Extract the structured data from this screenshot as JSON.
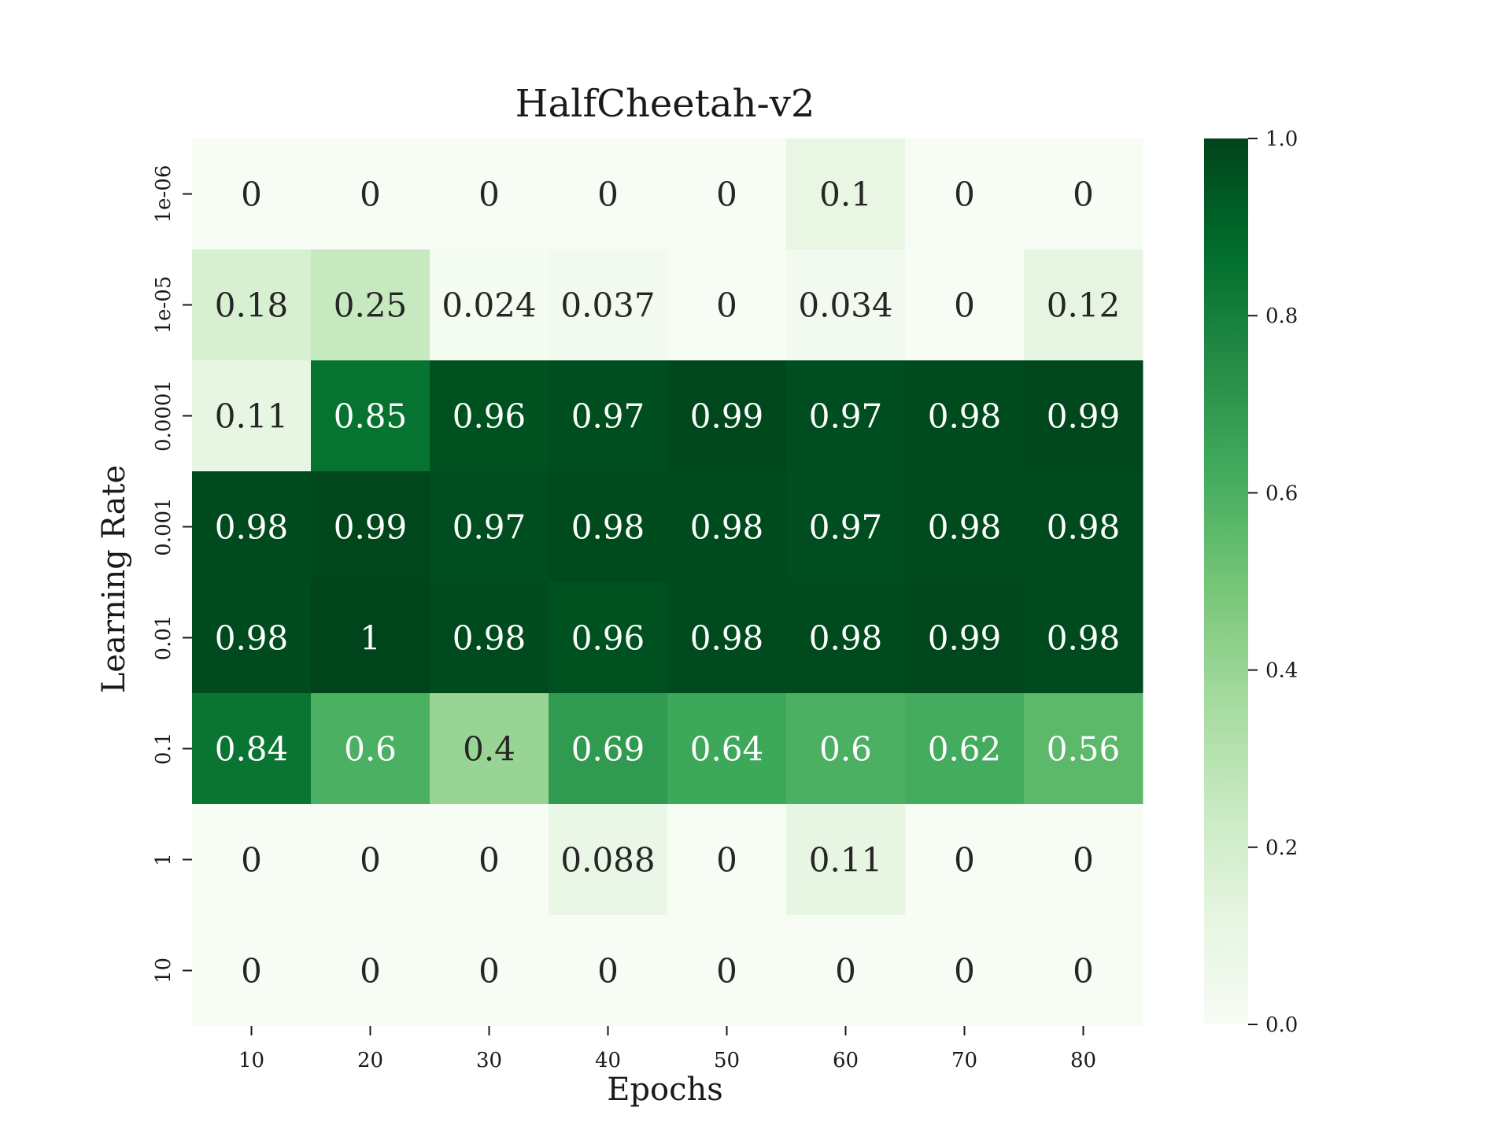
{
  "chart_data": {
    "type": "heatmap",
    "title": "HalfCheetah-v2",
    "xlabel": "Epochs",
    "ylabel": "Learning Rate",
    "x_categories": [
      "10",
      "20",
      "30",
      "40",
      "50",
      "60",
      "70",
      "80"
    ],
    "y_categories": [
      "1e-06",
      "1e-05",
      "0.0001",
      "0.001",
      "0.01",
      "0.1",
      "1",
      "10"
    ],
    "values": [
      [
        0,
        0,
        0,
        0,
        0,
        0.1,
        0,
        0
      ],
      [
        0.18,
        0.25,
        0.024,
        0.037,
        0,
        0.034,
        0,
        0.12
      ],
      [
        0.11,
        0.85,
        0.96,
        0.97,
        0.99,
        0.97,
        0.98,
        0.99
      ],
      [
        0.98,
        0.99,
        0.97,
        0.98,
        0.98,
        0.97,
        0.98,
        0.98
      ],
      [
        0.98,
        1,
        0.98,
        0.96,
        0.98,
        0.98,
        0.99,
        0.98
      ],
      [
        0.84,
        0.6,
        0.4,
        0.69,
        0.64,
        0.6,
        0.62,
        0.56
      ],
      [
        0,
        0,
        0,
        0.088,
        0,
        0.11,
        0,
        0
      ],
      [
        0,
        0,
        0,
        0,
        0,
        0,
        0,
        0
      ]
    ],
    "cell_labels": [
      [
        "0",
        "0",
        "0",
        "0",
        "0",
        "0.1",
        "0",
        "0"
      ],
      [
        "0.18",
        "0.25",
        "0.024",
        "0.037",
        "0",
        "0.034",
        "0",
        "0.12"
      ],
      [
        "0.11",
        "0.85",
        "0.96",
        "0.97",
        "0.99",
        "0.97",
        "0.98",
        "0.99"
      ],
      [
        "0.98",
        "0.99",
        "0.97",
        "0.98",
        "0.98",
        "0.97",
        "0.98",
        "0.98"
      ],
      [
        "0.98",
        "1",
        "0.98",
        "0.96",
        "0.98",
        "0.98",
        "0.99",
        "0.98"
      ],
      [
        "0.84",
        "0.6",
        "0.4",
        "0.69",
        "0.64",
        "0.6",
        "0.62",
        "0.56"
      ],
      [
        "0",
        "0",
        "0",
        "0.088",
        "0",
        "0.11",
        "0",
        "0"
      ],
      [
        "0",
        "0",
        "0",
        "0",
        "0",
        "0",
        "0",
        "0"
      ]
    ],
    "colorbar": {
      "range": [
        0,
        1
      ],
      "ticks": [
        "0.0",
        "0.2",
        "0.4",
        "0.6",
        "0.8",
        "1.0"
      ],
      "colormap": "Greens",
      "low_color": "#f7fcf5",
      "high_color": "#00441b"
    },
    "grid": false
  }
}
